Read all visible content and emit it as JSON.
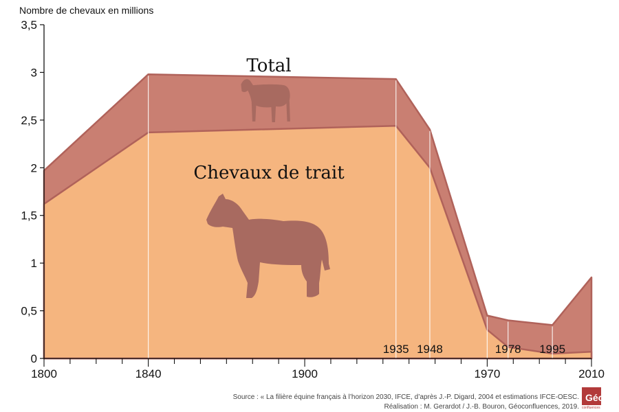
{
  "chart_data": {
    "type": "area",
    "ylabel": "Nombre de chevaux en millions",
    "ylim": [
      0,
      3.5
    ],
    "xlim": [
      1800,
      2010
    ],
    "y_ticks": [
      "0",
      "0,5",
      "1",
      "1,5",
      "2",
      "2,5",
      "3",
      "3,5"
    ],
    "x_tick_labels": [
      {
        "x": 1800,
        "label": "1800"
      },
      {
        "x": 1840,
        "label": "1840"
      },
      {
        "x": 1900,
        "label": "1900"
      },
      {
        "x": 1970,
        "label": "1970"
      },
      {
        "x": 2010,
        "label": "2010"
      }
    ],
    "annotated_years": [
      {
        "x": 1935,
        "label": "1935"
      },
      {
        "x": 1948,
        "label": "1948"
      },
      {
        "x": 1978,
        "label": "1978"
      },
      {
        "x": 1995,
        "label": "1995"
      }
    ],
    "x": [
      1800,
      1840,
      1935,
      1948,
      1970,
      1978,
      1995,
      2010
    ],
    "series": [
      {
        "name": "Total",
        "values": [
          1.97,
          2.98,
          2.93,
          2.4,
          0.45,
          0.4,
          0.35,
          0.85
        ]
      },
      {
        "name": "Chevaux de trait",
        "values": [
          1.62,
          2.37,
          2.44,
          2.0,
          0.3,
          0.12,
          0.05,
          0.07
        ]
      }
    ],
    "colors": {
      "total": "#c97f72",
      "total_stroke": "#b0625a",
      "trait": "#f5b57f",
      "horse_icon": "#a86a60",
      "axis": "#111111"
    }
  },
  "source": {
    "line1": "Source : « La filière équine français à l’horizon 2030, IFCE, d’après J.-P. Digard, 2004 et estimations IFCE-OESC.",
    "line2": "Réalisation : M. Gerardot / J.-B. Bouron, Géoconfluences, 2019."
  },
  "logo": {
    "text": "Géo",
    "subtext": "confluences",
    "color": "#b23a3a"
  }
}
